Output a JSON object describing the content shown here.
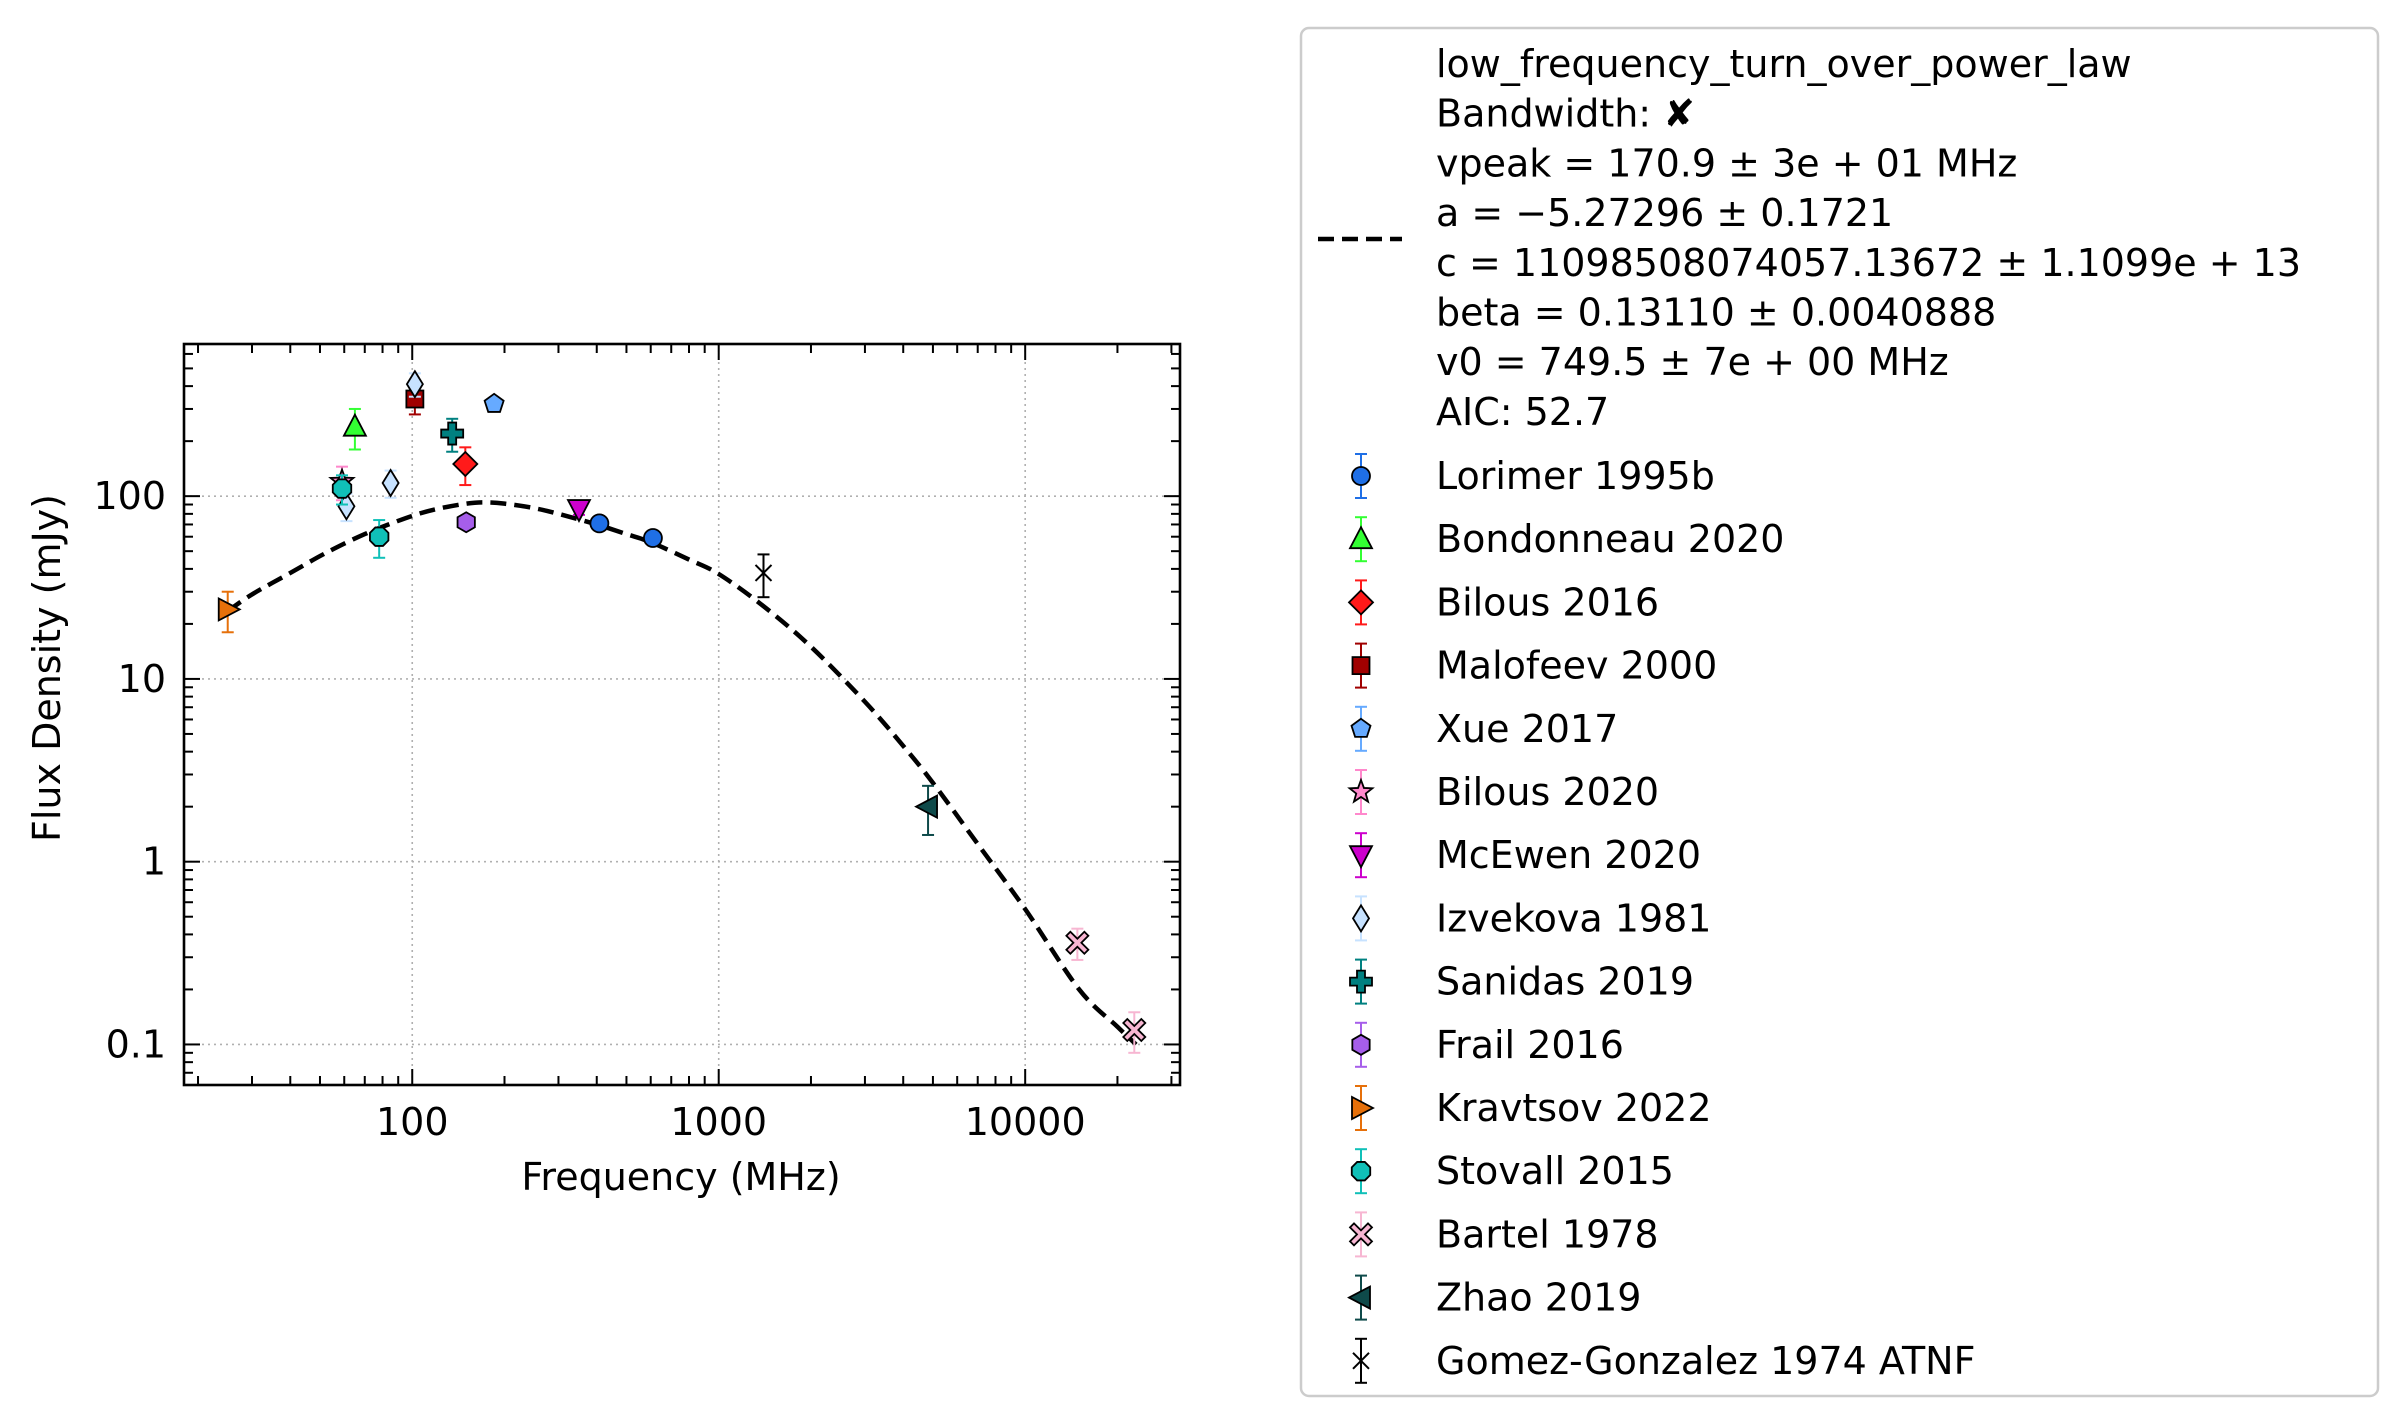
{
  "chart_data": {
    "type": "scatter",
    "xlabel": "Frequency (MHz)",
    "ylabel": "Flux Density (mJy)",
    "xscale": "log",
    "yscale": "log",
    "xlim": [
      18,
      32000
    ],
    "ylim": [
      0.06,
      680
    ],
    "xticks": [
      {
        "value": 100,
        "label": "100"
      },
      {
        "value": 1000,
        "label": "1000"
      },
      {
        "value": 10000,
        "label": "10000"
      }
    ],
    "yticks": [
      {
        "value": 0.1,
        "label": "0.1"
      },
      {
        "value": 1,
        "label": "1"
      },
      {
        "value": 10,
        "label": "10"
      },
      {
        "value": 100,
        "label": "100"
      }
    ],
    "grid": true,
    "legend_position": "outside-right",
    "fit": {
      "model": "low_frequency_turn_over_power_law",
      "legend_lines": [
        "low_frequency_turn_over_power_law",
        "Bandwidth: ✘",
        "vpeak = 170.9 ± 3e + 01 MHz",
        "a = −5.27296 ± 0.1721",
        "c = 11098508074057.13672 ± 1.1099e + 13",
        "beta = 0.13110 ± 0.0040888",
        "v0 = 749.5 ± 7e + 00 MHz",
        "AIC: 52.7"
      ],
      "x": [
        25,
        30,
        40,
        50,
        60,
        70,
        80,
        100,
        120,
        150,
        170.9,
        200,
        250,
        300,
        400,
        500,
        600,
        800,
        1000,
        1400,
        2000,
        3000,
        4000,
        5000,
        7000,
        10000,
        15000,
        20000,
        23000
      ],
      "y": [
        23.5,
        29,
        38,
        47,
        55,
        62,
        68,
        78,
        85,
        91,
        92.5,
        91,
        86,
        80,
        70,
        62,
        56,
        45,
        37.5,
        25,
        15,
        7.5,
        4.3,
        2.7,
        1.25,
        0.55,
        0.2,
        0.125,
        0.1
      ]
    },
    "series": [
      {
        "name": "Lorimer 1995b",
        "marker": "circle",
        "color": "#1f6fe6",
        "points": [
          {
            "x": 408,
            "y": 71,
            "err": 3
          },
          {
            "x": 610,
            "y": 59,
            "err": 3
          }
        ]
      },
      {
        "name": "Bondonneau 2020",
        "marker": "triangle-up",
        "color": "#33ff33",
        "points": [
          {
            "x": 65,
            "y": 240,
            "err": 60
          }
        ]
      },
      {
        "name": "Bilous 2016",
        "marker": "diamond",
        "color": "#ff1a1a",
        "points": [
          {
            "x": 149,
            "y": 150,
            "err": 35
          }
        ]
      },
      {
        "name": "Malofeev 2000",
        "marker": "square",
        "color": "#a00000",
        "points": [
          {
            "x": 102,
            "y": 340,
            "err": 60
          }
        ]
      },
      {
        "name": "Xue 2017",
        "marker": "pentagon",
        "color": "#66aaff",
        "points": [
          {
            "x": 185,
            "y": 320,
            "err": 0
          }
        ]
      },
      {
        "name": "Bilous 2020",
        "marker": "star",
        "color": "#ff88cc",
        "points": [
          {
            "x": 59,
            "y": 120,
            "err": 25
          }
        ]
      },
      {
        "name": "McEwen 2020",
        "marker": "triangle-down",
        "color": "#cc00cc",
        "points": [
          {
            "x": 350,
            "y": 85,
            "err": 6
          }
        ]
      },
      {
        "name": "Izvekova 1981",
        "marker": "thin-diamond",
        "color": "#c7e2ff",
        "points": [
          {
            "x": 61,
            "y": 88,
            "err": 15
          },
          {
            "x": 85,
            "y": 118,
            "err": 20
          },
          {
            "x": 102,
            "y": 410,
            "err": 60
          }
        ]
      },
      {
        "name": "Sanidas 2019",
        "marker": "plus",
        "color": "#008080",
        "points": [
          {
            "x": 135,
            "y": 220,
            "err": 45
          }
        ]
      },
      {
        "name": "Frail 2016",
        "marker": "hexagon",
        "color": "#a65eea",
        "points": [
          {
            "x": 150,
            "y": 72,
            "err": 0
          }
        ]
      },
      {
        "name": "Kravtsov 2022",
        "marker": "triangle-right",
        "color": "#e6700a",
        "points": [
          {
            "x": 25,
            "y": 24,
            "err": 6
          }
        ]
      },
      {
        "name": "Stovall 2015",
        "marker": "octagon",
        "color": "#10c0b8",
        "points": [
          {
            "x": 59,
            "y": 110,
            "err": 20
          },
          {
            "x": 78,
            "y": 60,
            "err": 14
          }
        ]
      },
      {
        "name": "Bartel 1978",
        "marker": "x-filled",
        "color": "#f7b6d2",
        "points": [
          {
            "x": 14800,
            "y": 0.36,
            "err": 0.07
          },
          {
            "x": 22700,
            "y": 0.12,
            "err": 0.03
          }
        ]
      },
      {
        "name": "Zhao 2019",
        "marker": "triangle-left",
        "color": "#0e4a4a",
        "points": [
          {
            "x": 4820,
            "y": 2.0,
            "err": 0.6
          }
        ]
      },
      {
        "name": "Gomez-Gonzalez 1974 ATNF",
        "marker": "x",
        "color": "#000000",
        "points": [
          {
            "x": 1400,
            "y": 38,
            "err": 10
          }
        ]
      }
    ]
  }
}
